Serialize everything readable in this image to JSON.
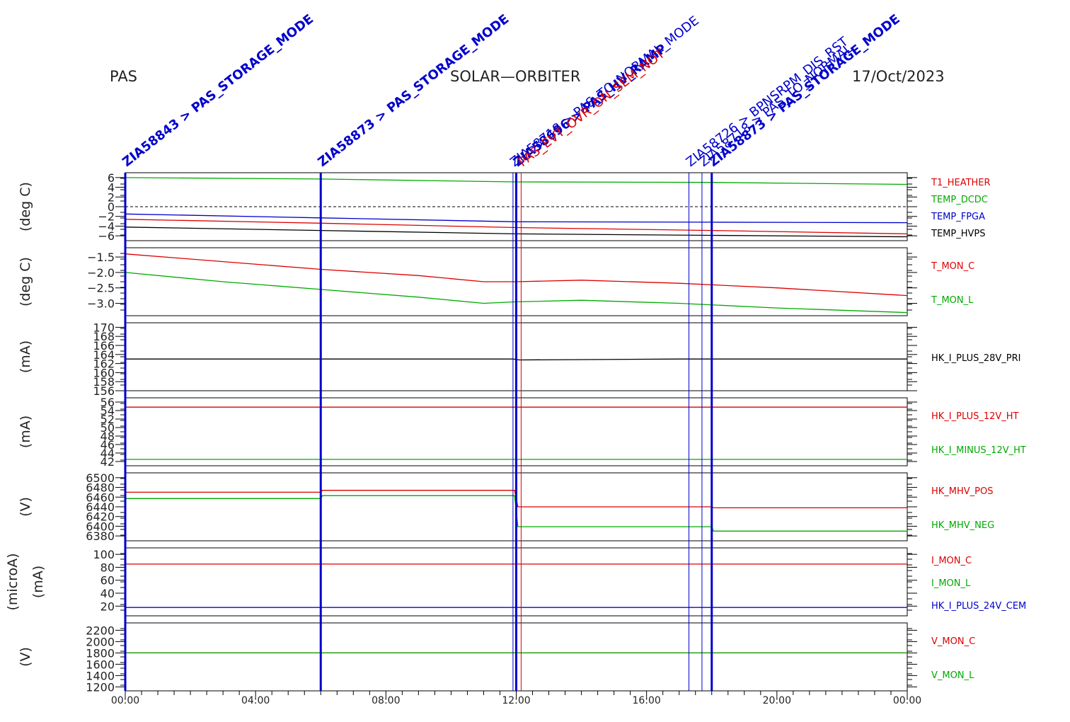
{
  "header": {
    "left": "PAS",
    "center": "SOLAR—ORBITER",
    "right": "17/Oct/2023"
  },
  "colors": {
    "red": "#dd0000",
    "green": "#00aa00",
    "blue": "#0000cc",
    "black": "#000000"
  },
  "chart_data": {
    "type": "line",
    "x_ticks": [
      "00:00",
      "04:00",
      "08:00",
      "12:00",
      "16:00",
      "20:00",
      "00:00"
    ],
    "x_range_hours": [
      0,
      24
    ],
    "events": [
      {
        "t": 0.0,
        "label": "ZIA58843 > PAS_STORAGE_MODE",
        "color": "#0000cc",
        "bold": true
      },
      {
        "t": 6.0,
        "label": "ZIA58873 > PAS_STORAGE_MODE",
        "color": "#0000cc",
        "bold": true
      },
      {
        "t": 11.9,
        "label": "ZIA58718 > PAS_TO_NORMAL_MODE",
        "color": "#0000cc",
        "bold": false
      },
      {
        "t": 12.0,
        "label": "ZIA58696 > PAS_HV_RAMP",
        "color": "#0000cc",
        "bold": true
      },
      {
        "t": 12.15,
        "label": "PAS_EVT_OVR_ON_SEM_NOT",
        "color": "#dd0000",
        "bold": false
      },
      {
        "t": 17.3,
        "label": "ZIA58726 > BPNSRPM_DIS_RST",
        "color": "#0000cc",
        "bold": false
      },
      {
        "t": 17.7,
        "label": "ZIA58718 > PAS_TO_NORMAL",
        "color": "#0000cc",
        "bold": false
      },
      {
        "t": 18.0,
        "label": "ZIA58873 > PAS_STORAGE_MODE",
        "color": "#0000cc",
        "bold": true
      }
    ],
    "panels": [
      {
        "ylabel": "(deg C)",
        "ylim": [
          -7,
          7
        ],
        "ticks": [
          "6",
          "4",
          "2",
          "0",
          "−2",
          "−4",
          "−6"
        ],
        "tick_values": [
          6,
          4,
          2,
          0,
          -2,
          -4,
          -6
        ],
        "zero_line": true,
        "series": [
          {
            "name": "T1_HEATHER",
            "color": "#dd0000",
            "x": [
              0,
              6,
              12,
              18,
              24
            ],
            "y": [
              -2.6,
              -3.4,
              -4.3,
              -4.9,
              -5.6
            ]
          },
          {
            "name": "TEMP_DCDC",
            "color": "#00aa00",
            "x": [
              0,
              6,
              12,
              18,
              24
            ],
            "y": [
              6.0,
              5.7,
              5.1,
              5.0,
              4.6
            ]
          },
          {
            "name": "TEMP_FPGA",
            "color": "#0000cc",
            "x": [
              0,
              6,
              12,
              18,
              24
            ],
            "y": [
              -1.5,
              -2.3,
              -3.1,
              -3.2,
              -3.3
            ]
          },
          {
            "name": "TEMP_HVPS",
            "color": "#000000",
            "x": [
              0,
              6,
              12,
              18,
              24
            ],
            "y": [
              -4.2,
              -4.9,
              -5.6,
              -5.9,
              -6.2
            ]
          }
        ]
      },
      {
        "ylabel": "(deg C)",
        "ylim": [
          -3.4,
          -1.2
        ],
        "ticks": [
          "−1.5",
          "−2.0",
          "−2.5",
          "−3.0"
        ],
        "tick_values": [
          -1.5,
          -2.0,
          -2.5,
          -3.0
        ],
        "series": [
          {
            "name": "T_MON_C",
            "color": "#dd0000",
            "x": [
              0,
              3,
              6,
              9,
              11,
              12,
              14,
              17,
              20,
              24
            ],
            "y": [
              -1.4,
              -1.65,
              -1.9,
              -2.1,
              -2.3,
              -2.3,
              -2.25,
              -2.35,
              -2.5,
              -2.75
            ]
          },
          {
            "name": "T_MON_L",
            "color": "#00aa00",
            "x": [
              0,
              3,
              6,
              9,
              11,
              12,
              14,
              17,
              20,
              24
            ],
            "y": [
              -2.0,
              -2.3,
              -2.55,
              -2.8,
              -3.0,
              -2.95,
              -2.9,
              -3.0,
              -3.15,
              -3.3
            ]
          }
        ]
      },
      {
        "ylabel": "(mA)",
        "ylim": [
          156,
          171
        ],
        "ticks": [
          "170",
          "168",
          "166",
          "164",
          "162",
          "160",
          "158",
          "156"
        ],
        "tick_values": [
          170,
          168,
          166,
          164,
          162,
          160,
          158,
          156
        ],
        "series": [
          {
            "name": "HK_I_PLUS_28V_PRI",
            "color": "#000000",
            "x": [
              0,
              6,
              11.9,
              12.1,
              17,
              18,
              24
            ],
            "y": [
              163,
              163,
              163,
              162.8,
              163,
              163,
              163
            ]
          }
        ]
      },
      {
        "ylabel": "(mA)",
        "ylim": [
          41,
          57
        ],
        "ticks": [
          "56",
          "54",
          "52",
          "50",
          "48",
          "46",
          "44",
          "42"
        ],
        "tick_values": [
          56,
          54,
          52,
          50,
          48,
          46,
          44,
          42
        ],
        "series": [
          {
            "name": "HK_I_PLUS_12V_HT",
            "color": "#dd0000",
            "x": [
              0,
              24
            ],
            "y": [
              54.8,
              54.8
            ]
          },
          {
            "name": "HK_I_MINUS_12V_HT",
            "color": "#00aa00",
            "x": [
              0,
              24
            ],
            "y": [
              42.5,
              42.5
            ]
          }
        ]
      },
      {
        "ylabel": "(V)",
        "ylim": [
          6370,
          6510
        ],
        "ticks": [
          "6500",
          "6480",
          "6460",
          "6440",
          "6420",
          "6400",
          "6380"
        ],
        "tick_values": [
          6500,
          6480,
          6460,
          6440,
          6420,
          6400,
          6380
        ],
        "series": [
          {
            "name": "HK_MHV_POS",
            "color": "#dd0000",
            "x": [
              0,
              6,
              6.05,
              11.95,
              12.05,
              18,
              18.05,
              24
            ],
            "y": [
              6470,
              6470,
              6474,
              6474,
              6440,
              6440,
              6438,
              6438
            ]
          },
          {
            "name": "HK_MHV_NEG",
            "color": "#00aa00",
            "x": [
              0,
              6,
              6.05,
              11.95,
              12.05,
              18,
              18.05,
              24
            ],
            "y": [
              6457,
              6457,
              6463,
              6463,
              6399,
              6399,
              6390,
              6390
            ]
          }
        ]
      },
      {
        "ylabel": "(microA)",
        "ylabel2": "(mA)",
        "ylim": [
          5,
          110
        ],
        "ticks": [
          "100",
          "80",
          "60",
          "40",
          "20"
        ],
        "tick_values": [
          100,
          80,
          60,
          40,
          20
        ],
        "series": [
          {
            "name": "I_MON_C",
            "color": "#dd0000",
            "x": [
              0,
              24
            ],
            "y": [
              85,
              85
            ]
          },
          {
            "name": "I_MON_L",
            "color": "#00aa00",
            "x": [
              0,
              24
            ],
            "y": [
              18,
              18
            ]
          },
          {
            "name": "HK_I_PLUS_24V_CEM",
            "color": "#0000cc",
            "x": [
              0,
              24
            ],
            "y": [
              18,
              18
            ]
          }
        ]
      },
      {
        "ylabel": "(V)",
        "ylim": [
          1130,
          2330
        ],
        "ticks": [
          "2200",
          "2000",
          "1800",
          "1600",
          "1400",
          "1200"
        ],
        "tick_values": [
          2200,
          2000,
          1800,
          1600,
          1400,
          1200
        ],
        "series": [
          {
            "name": "V_MON_C",
            "color": "#dd0000",
            "x": [
              0,
              24
            ],
            "y": [
              1800,
              1800
            ]
          },
          {
            "name": "V_MON_L",
            "color": "#00aa00",
            "x": [
              0,
              24
            ],
            "y": [
              1800,
              1800
            ]
          }
        ]
      }
    ]
  }
}
